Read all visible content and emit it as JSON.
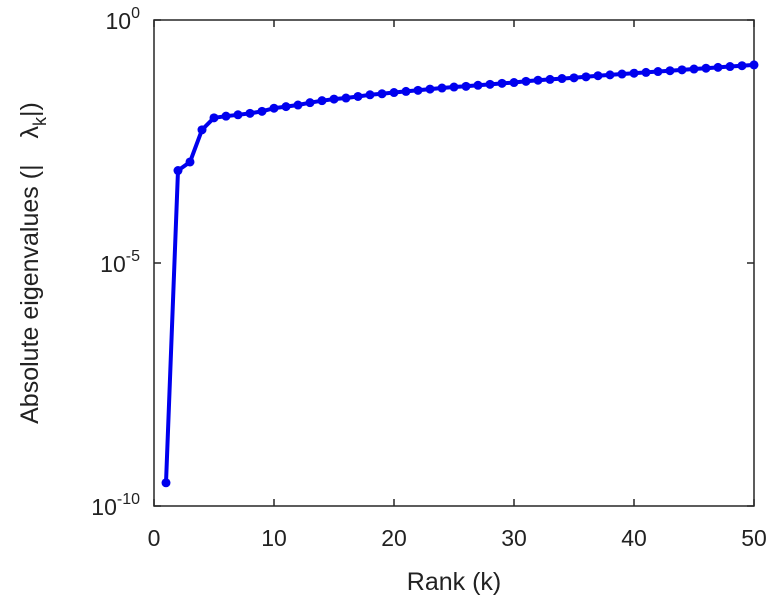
{
  "chart_data": {
    "type": "line",
    "xlabel": "Rank (k)",
    "ylabel": {
      "text": "Absolute eigenvalues (|",
      "symbol": "λ",
      "subscript": "k",
      "suffix": "|)"
    },
    "y_scale": "log",
    "xlim": [
      0,
      50
    ],
    "ylim": [
      1e-10,
      1
    ],
    "x_ticks": [
      0,
      10,
      20,
      30,
      40,
      50
    ],
    "y_ticks": [
      {
        "value": 1,
        "base": "10",
        "exponent": "0"
      },
      {
        "value": 1e-05,
        "base": "10",
        "exponent": "-5"
      },
      {
        "value": 1e-10,
        "base": "10",
        "exponent": "-10"
      }
    ],
    "grid": false,
    "color": "#0000ee",
    "series": [
      {
        "x": [
          1,
          2,
          3,
          4,
          5,
          6,
          7,
          8,
          9,
          10,
          11,
          12,
          13,
          14,
          15,
          16,
          17,
          18,
          19,
          20,
          21,
          22,
          23,
          24,
          25,
          26,
          27,
          28,
          29,
          30,
          31,
          32,
          33,
          34,
          35,
          36,
          37,
          38,
          39,
          40,
          41,
          42,
          43,
          44,
          45,
          46,
          47,
          48,
          49,
          50
        ],
        "y": [
          3e-10,
          0.0008,
          0.0012,
          0.0055,
          0.0097,
          0.0105,
          0.0112,
          0.012,
          0.0132,
          0.0153,
          0.0165,
          0.0178,
          0.0199,
          0.0219,
          0.0236,
          0.0248,
          0.0267,
          0.0289,
          0.0303,
          0.0322,
          0.0339,
          0.0357,
          0.0379,
          0.0398,
          0.0418,
          0.0432,
          0.0454,
          0.0474,
          0.0497,
          0.0517,
          0.0547,
          0.0576,
          0.0599,
          0.0624,
          0.0646,
          0.0677,
          0.0714,
          0.0743,
          0.0773,
          0.0804,
          0.0836,
          0.087,
          0.0905,
          0.0942,
          0.098,
          0.1019,
          0.106,
          0.1103,
          0.1147,
          0.119
        ]
      }
    ]
  }
}
